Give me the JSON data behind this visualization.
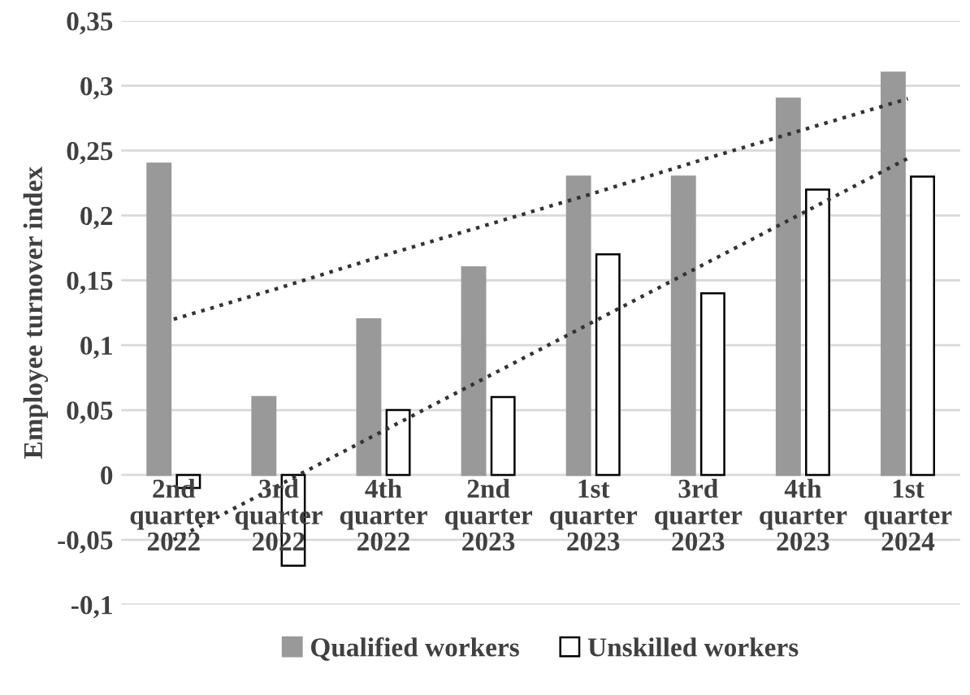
{
  "chart_data": {
    "type": "bar",
    "ylabel": "Employee turnover index",
    "categories": [
      "2nd\nquarter\n2022",
      "3rd\nquarter\n2022",
      "4th\nquarter\n2022",
      "2nd\nquarter\n2023",
      "1st\nquarter\n2023",
      "3rd\nquarter\n2023",
      "4th\nquarter\n2023",
      "1st\nquarter\n2024"
    ],
    "series": [
      {
        "name": "Qualified workers",
        "color": "#999999",
        "values": [
          0.24,
          0.06,
          0.12,
          0.16,
          0.23,
          0.23,
          0.29,
          0.31
        ]
      },
      {
        "name": "Unskilled workers",
        "color": "#ffffff",
        "values": [
          -0.01,
          -0.07,
          0.05,
          0.06,
          0.17,
          0.14,
          0.22,
          0.23
        ]
      },
      {
        "type": "line",
        "color": "#333333",
        "line_style": "dotted",
        "values": [
          0.12,
          0.144,
          0.169,
          0.193,
          0.217,
          0.242,
          0.266,
          0.29
        ]
      },
      {
        "type": "line",
        "color": "#333333",
        "line_style": "dotted",
        "values": [
          -0.05,
          -0.008,
          0.034,
          0.076,
          0.118,
          0.16,
          0.202,
          0.244
        ]
      }
    ],
    "ylim": [
      -0.1,
      0.35
    ],
    "yticks": [
      {
        "value": -0.1,
        "label": "-0,1"
      },
      {
        "value": -0.05,
        "label": "-0,05"
      },
      {
        "value": 0,
        "label": "0"
      },
      {
        "value": 0.05,
        "label": "0,05"
      },
      {
        "value": 0.1,
        "label": "0,1"
      },
      {
        "value": 0.15,
        "label": "0,15"
      },
      {
        "value": 0.2,
        "label": "0,2"
      },
      {
        "value": 0.25,
        "label": "0,25"
      },
      {
        "value": 0.3,
        "label": "0,3"
      },
      {
        "value": 0.35,
        "label": "0,35"
      }
    ],
    "grid": "y",
    "legend": "bottom"
  }
}
